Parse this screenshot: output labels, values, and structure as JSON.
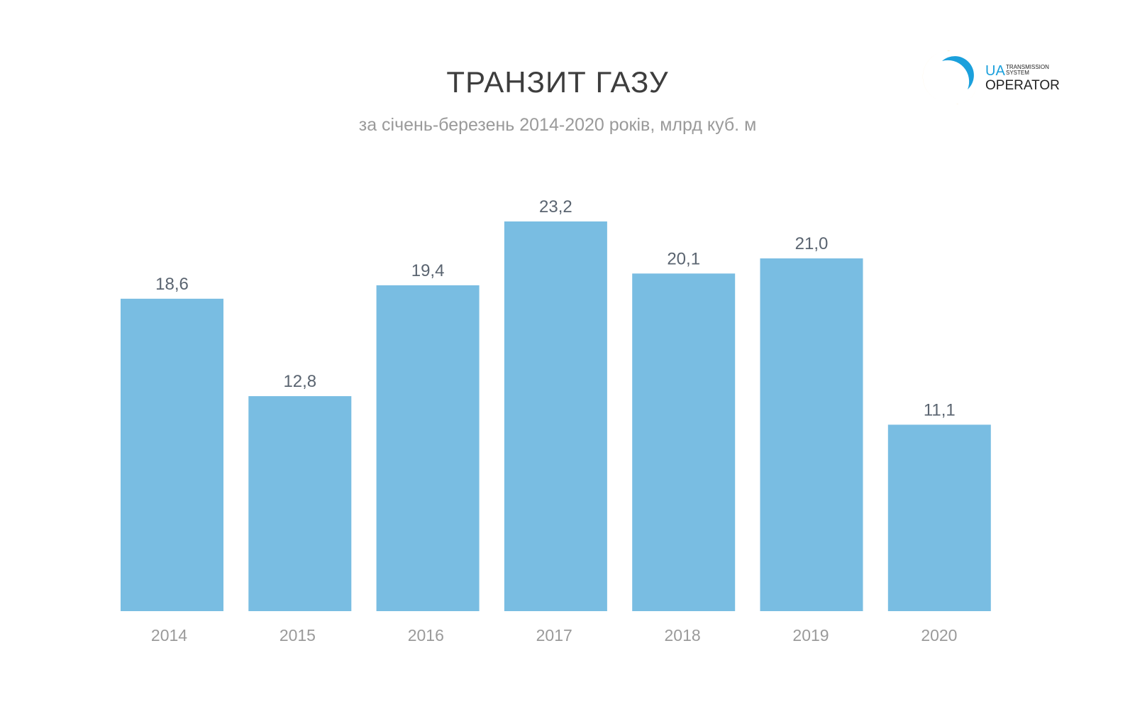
{
  "chart_data": {
    "type": "bar",
    "title": "ТРАНЗИТ ГАЗУ",
    "subtitle": "за січень-березень 2014-2020 років, млрд куб. м",
    "categories": [
      "2014",
      "2015",
      "2016",
      "2017",
      "2018",
      "2019",
      "2020"
    ],
    "values": [
      18.6,
      12.8,
      19.4,
      23.2,
      20.1,
      21.0,
      11.1
    ],
    "value_labels": [
      "18,6",
      "12,8",
      "19,4",
      "23,2",
      "20,1",
      "21,0",
      "11,1"
    ],
    "xlabel": "",
    "ylabel": "",
    "ylim": [
      0,
      23.2
    ],
    "grid": false,
    "bar_color": "#79bde2"
  },
  "logo": {
    "ua": "UA",
    "line1": "TRANSMISSION",
    "line2": "SYSTEM",
    "line3": "OPERATOR"
  }
}
